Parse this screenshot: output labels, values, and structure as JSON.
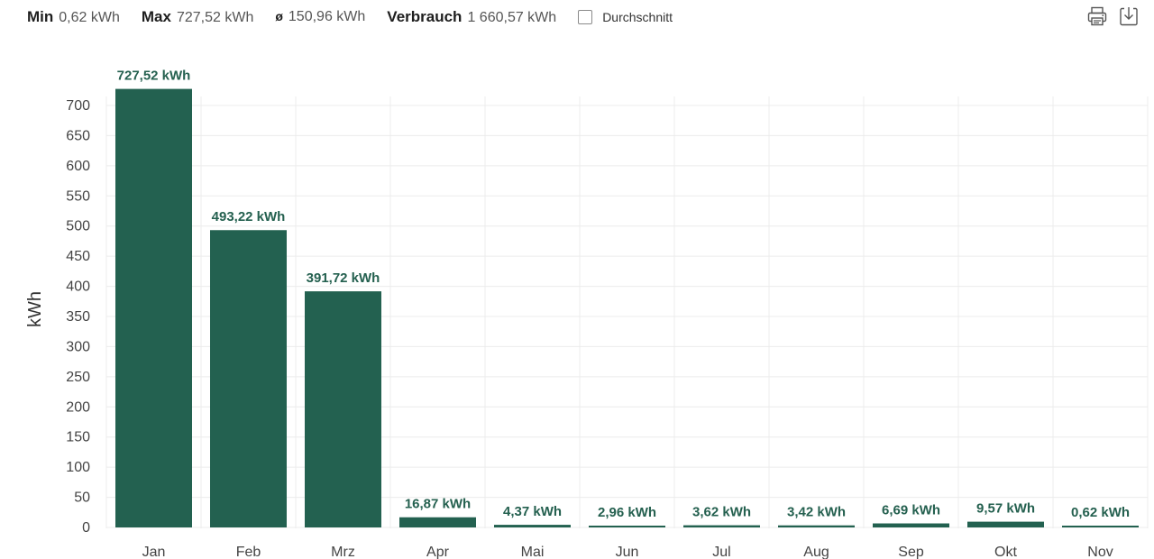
{
  "stats": {
    "min_label": "Min",
    "min_value": "0,62 kWh",
    "max_label": "Max",
    "max_value": "727,52 kWh",
    "avg_symbol": "ø",
    "avg_value": "150,96 kWh",
    "total_label": "Verbrauch",
    "total_value": "1 660,57 kWh",
    "average_toggle_label": "Durchschnitt",
    "average_toggle_checked": false
  },
  "toolbar": {
    "print_icon": "printer-icon",
    "download_icon": "download-icon"
  },
  "colors": {
    "bar": "#236150",
    "data_label": "#24604f",
    "grid": "#ececec"
  },
  "chart_data": {
    "type": "bar",
    "categories": [
      "Jan",
      "Feb",
      "Mrz",
      "Apr",
      "Mai",
      "Jun",
      "Jul",
      "Aug",
      "Sep",
      "Okt",
      "Nov"
    ],
    "values": [
      727.52,
      493.22,
      391.72,
      16.87,
      4.37,
      2.96,
      3.62,
      3.42,
      6.69,
      9.57,
      0.62
    ],
    "value_labels": [
      "727,52 kWh",
      "493,22 kWh",
      "391,72 kWh",
      "16,87 kWh",
      "4,37 kWh",
      "2,96 kWh",
      "3,62 kWh",
      "3,42 kWh",
      "6,69 kWh",
      "9,57 kWh",
      "0,62 kWh"
    ],
    "ylabel": "kWh",
    "xlabel": "",
    "ylim": [
      0,
      730
    ],
    "yticks": [
      0,
      50,
      100,
      150,
      200,
      250,
      300,
      350,
      400,
      450,
      500,
      550,
      600,
      650,
      700
    ],
    "grid": true
  }
}
